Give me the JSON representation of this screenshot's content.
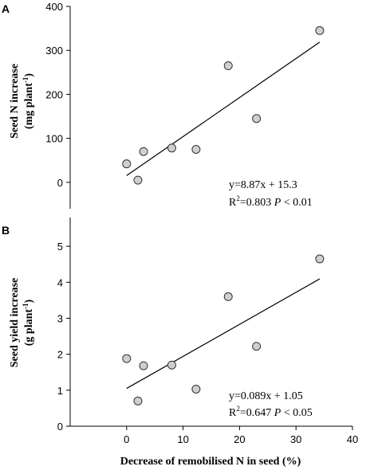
{
  "chart_data": [
    {
      "type": "scatter",
      "panel": "A",
      "ylabel_line1": "Seed N increase",
      "ylabel_unit_prefix": "(mg plant",
      "ylabel_unit_sup": "-1",
      "ylabel_unit_suffix": ")",
      "xlim": [
        -10,
        40
      ],
      "ylim": [
        -60,
        400
      ],
      "yticks": [
        0,
        100,
        200,
        300,
        400
      ],
      "points": [
        {
          "x": 0,
          "y": 42
        },
        {
          "x": 2,
          "y": 5
        },
        {
          "x": 3,
          "y": 70
        },
        {
          "x": 8,
          "y": 78
        },
        {
          "x": 12.3,
          "y": 75
        },
        {
          "x": 18,
          "y": 265
        },
        {
          "x": 23,
          "y": 145
        },
        {
          "x": 34.2,
          "y": 345
        }
      ],
      "fit": {
        "slope": 8.87,
        "intercept": 15.3,
        "x_from": 0,
        "x_to": 34.2
      },
      "equation": "y=8.87x + 15.3",
      "r2_prefix": "R",
      "r2_sup": "2",
      "r2_value": "=0.803 ",
      "p_symbol": "P",
      "p_text": " < 0.01",
      "grid": false
    },
    {
      "type": "scatter",
      "panel": "B",
      "ylabel_line1": "Seed yield increase",
      "ylabel_unit_prefix": "(g plant",
      "ylabel_unit_sup": "-1",
      "ylabel_unit_suffix": ")",
      "xlabel": "Decrease of remobilised N in seed (%)",
      "xlim": [
        -10,
        40
      ],
      "ylim": [
        0,
        5.8
      ],
      "yticks": [
        0,
        1,
        2,
        3,
        4,
        5
      ],
      "xticks": [
        0,
        10,
        20,
        30,
        40
      ],
      "points": [
        {
          "x": 0,
          "y": 1.88
        },
        {
          "x": 2,
          "y": 0.7
        },
        {
          "x": 3,
          "y": 1.68
        },
        {
          "x": 8,
          "y": 1.7
        },
        {
          "x": 12.3,
          "y": 1.03
        },
        {
          "x": 18,
          "y": 3.6
        },
        {
          "x": 23,
          "y": 2.22
        },
        {
          "x": 34.2,
          "y": 4.65
        }
      ],
      "fit": {
        "slope": 0.089,
        "intercept": 1.05,
        "x_from": 0,
        "x_to": 34.2
      },
      "equation": "y=0.089x + 1.05",
      "r2_prefix": "R",
      "r2_sup": "2",
      "r2_value": "=0.647 ",
      "p_symbol": "P",
      "p_text": " < 0.05",
      "grid": false
    }
  ]
}
